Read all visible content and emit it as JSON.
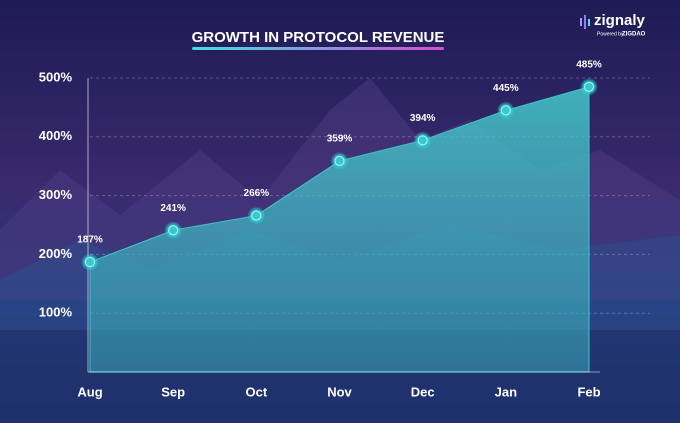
{
  "logo": {
    "name": "zignaly",
    "tagline": "Powered by",
    "brand": "ZIGDAO"
  },
  "chart_data": {
    "type": "area",
    "title": "GROWTH IN PROTOCOL REVENUE",
    "categories": [
      "Aug",
      "Sep",
      "Oct",
      "Nov",
      "Dec",
      "Jan",
      "Feb"
    ],
    "values": [
      187,
      241,
      266,
      359,
      394,
      445,
      485
    ],
    "value_labels": [
      "187%",
      "241%",
      "266%",
      "359%",
      "394%",
      "445%",
      "485%"
    ],
    "color": "#3fc6c9",
    "ylim": [
      0,
      500
    ],
    "yticks": [
      {
        "value": 100,
        "label": "100%"
      },
      {
        "value": 200,
        "label": "200%"
      },
      {
        "value": 300,
        "label": "300%"
      },
      {
        "value": 400,
        "label": "400%"
      },
      {
        "value": 500,
        "label": "500%"
      }
    ],
    "grid": true
  }
}
